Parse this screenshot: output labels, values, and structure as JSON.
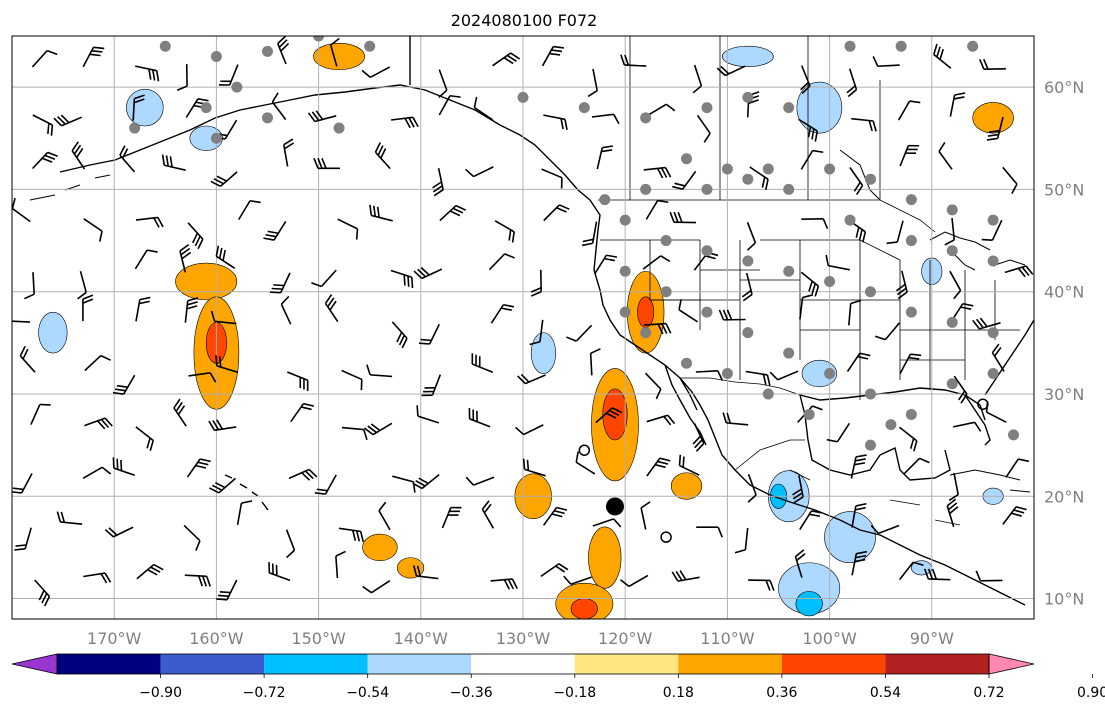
{
  "title": "2024080100 F072",
  "map": {
    "lon_range": [
      -180,
      -80
    ],
    "lat_range": [
      8,
      65
    ],
    "lon_ticks": [
      {
        "value": -170,
        "label": "170°W"
      },
      {
        "value": -160,
        "label": "160°W"
      },
      {
        "value": -150,
        "label": "150°W"
      },
      {
        "value": -140,
        "label": "140°W"
      },
      {
        "value": -130,
        "label": "130°W"
      },
      {
        "value": -120,
        "label": "120°W"
      },
      {
        "value": -110,
        "label": "110°W"
      },
      {
        "value": -100,
        "label": "100°W"
      },
      {
        "value": -90,
        "label": "90°W"
      }
    ],
    "lat_ticks": [
      {
        "value": 10,
        "label": "10°N"
      },
      {
        "value": 20,
        "label": "20°N"
      },
      {
        "value": 30,
        "label": "30°N"
      },
      {
        "value": 40,
        "label": "40°N"
      },
      {
        "value": 50,
        "label": "50°N"
      },
      {
        "value": 60,
        "label": "60°N"
      }
    ],
    "grid": true,
    "colors": {
      "grid": "#b0b0b0",
      "coast": "#000000",
      "barb": "#000000",
      "station": "#808080",
      "tick_label": "#808080"
    }
  },
  "colorbar": {
    "levels": [
      "−0.90",
      "−0.72",
      "−0.54",
      "−0.36",
      "−0.18",
      "0.18",
      "0.36",
      "0.54",
      "0.72",
      "0.90"
    ],
    "colors": [
      "#9a35d0",
      "#000080",
      "#3b5ccc",
      "#00bfff",
      "#add8ff",
      "#ffffff",
      "#ffe680",
      "#ffa500",
      "#ff4500",
      "#b22222",
      "#ff88b0"
    ],
    "extend": "both"
  },
  "anomaly_regions": [
    {
      "lon": -161,
      "lat": 41,
      "rx": 3.0,
      "ry": 1.8,
      "level": 0.36
    },
    {
      "lon": -160,
      "lat": 34,
      "rx": 2.2,
      "ry": 5.5,
      "level": 0.36
    },
    {
      "lon": -160,
      "lat": 35,
      "rx": 1.0,
      "ry": 2.0,
      "level": 0.54
    },
    {
      "lon": -129,
      "lat": 20,
      "rx": 1.8,
      "ry": 2.2,
      "level": 0.36
    },
    {
      "lon": -121,
      "lat": 27,
      "rx": 2.3,
      "ry": 5.5,
      "level": 0.36
    },
    {
      "lon": -121,
      "lat": 28,
      "rx": 1.2,
      "ry": 2.5,
      "level": 0.54
    },
    {
      "lon": -118,
      "lat": 38,
      "rx": 1.8,
      "ry": 4.0,
      "level": 0.36
    },
    {
      "lon": -118,
      "lat": 38,
      "rx": 0.8,
      "ry": 1.5,
      "level": 0.54
    },
    {
      "lon": -122,
      "lat": 14,
      "rx": 1.6,
      "ry": 3.0,
      "level": 0.36
    },
    {
      "lon": -124,
      "lat": 9.5,
      "rx": 2.8,
      "ry": 2.0,
      "level": 0.36
    },
    {
      "lon": -124,
      "lat": 9,
      "rx": 1.3,
      "ry": 1.0,
      "level": 0.54
    },
    {
      "lon": -144,
      "lat": 15,
      "rx": 1.7,
      "ry": 1.3,
      "level": 0.36
    },
    {
      "lon": -114,
      "lat": 21,
      "rx": 1.5,
      "ry": 1.3,
      "level": 0.36
    },
    {
      "lon": -148,
      "lat": 63,
      "rx": 2.5,
      "ry": 1.3,
      "level": 0.36
    },
    {
      "lon": -84,
      "lat": 57,
      "rx": 2.0,
      "ry": 1.5,
      "level": 0.36
    },
    {
      "lon": -141,
      "lat": 13,
      "rx": 1.3,
      "ry": 1.0,
      "level": 0.36
    },
    {
      "lon": -176,
      "lat": 36,
      "rx": 1.4,
      "ry": 2.0,
      "level": -0.36
    },
    {
      "lon": -167,
      "lat": 58,
      "rx": 1.8,
      "ry": 1.8,
      "level": -0.36
    },
    {
      "lon": -161,
      "lat": 55,
      "rx": 1.6,
      "ry": 1.2,
      "level": -0.36
    },
    {
      "lon": -128,
      "lat": 34,
      "rx": 1.2,
      "ry": 2.0,
      "level": -0.36
    },
    {
      "lon": -108,
      "lat": 63,
      "rx": 2.5,
      "ry": 1.0,
      "level": -0.36
    },
    {
      "lon": -101,
      "lat": 58,
      "rx": 2.2,
      "ry": 2.5,
      "level": -0.36
    },
    {
      "lon": -101,
      "lat": 32,
      "rx": 1.7,
      "ry": 1.3,
      "level": -0.36
    },
    {
      "lon": -98,
      "lat": 16,
      "rx": 2.5,
      "ry": 2.5,
      "level": -0.36
    },
    {
      "lon": -104,
      "lat": 20,
      "rx": 2.0,
      "ry": 2.5,
      "level": -0.36
    },
    {
      "lon": -105,
      "lat": 20,
      "rx": 0.8,
      "ry": 1.2,
      "level": -0.54
    },
    {
      "lon": -102,
      "lat": 11,
      "rx": 3.0,
      "ry": 2.5,
      "level": -0.36
    },
    {
      "lon": -102,
      "lat": 9.5,
      "rx": 1.3,
      "ry": 1.2,
      "level": -0.54
    },
    {
      "lon": -90,
      "lat": 42,
      "rx": 1.0,
      "ry": 1.3,
      "level": -0.36
    },
    {
      "lon": -84,
      "lat": 20,
      "rx": 1.0,
      "ry": 0.8,
      "level": -0.36
    },
    {
      "lon": -91,
      "lat": 13,
      "rx": 1.0,
      "ry": 0.7,
      "level": -0.36
    }
  ],
  "markers": {
    "black_dot": {
      "lon": -121,
      "lat": 19
    },
    "open_circles": [
      {
        "lon": -124,
        "lat": 24.5
      },
      {
        "lon": -116,
        "lat": 16
      },
      {
        "lon": -85,
        "lat": 29
      }
    ]
  }
}
